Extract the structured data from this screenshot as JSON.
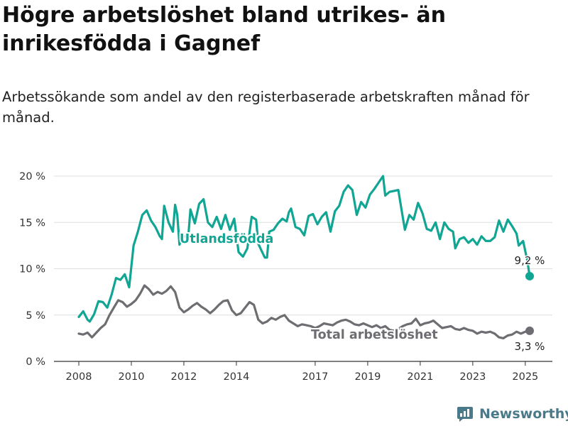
{
  "title": "Högre arbetslöshet bland utrikes- än inrikesfödda i Gagnef",
  "subtitle": "Arbetssökande som andel av den registerbaserade arbetskraften månad för månad.",
  "brand": "Newsworthy",
  "colors": {
    "utlandsfodda": "#11a594",
    "total": "#6e6e72",
    "grid": "#dedede",
    "axis": "#333333",
    "brand": "#4a7a8a"
  },
  "chart_data": {
    "type": "line",
    "ylim": [
      0,
      20
    ],
    "y_ticks": [
      0,
      5,
      10,
      15,
      20
    ],
    "y_tick_labels": [
      "0 %",
      "5 %",
      "10 %",
      "15 %",
      "20 %"
    ],
    "x_ticks": [
      "2008",
      "2010",
      "2012",
      "2014",
      "2017",
      "2019",
      "2021",
      "2023",
      "2025"
    ],
    "xlim": [
      "2008-01",
      "2025-03"
    ],
    "grid": true,
    "series": [
      {
        "name": "Utlandsfödda",
        "end_label": "9,2 %",
        "points": [
          [
            "2008-01",
            4.8
          ],
          [
            "2008-03",
            5.4
          ],
          [
            "2008-05",
            4.5
          ],
          [
            "2008-06",
            4.3
          ],
          [
            "2008-08",
            5.1
          ],
          [
            "2008-10",
            6.5
          ],
          [
            "2008-12",
            6.4
          ],
          [
            "2009-02",
            5.8
          ],
          [
            "2009-04",
            7.2
          ],
          [
            "2009-06",
            9.0
          ],
          [
            "2009-08",
            8.8
          ],
          [
            "2009-10",
            9.4
          ],
          [
            "2009-12",
            8.0
          ],
          [
            "2010-02",
            12.5
          ],
          [
            "2010-04",
            14.0
          ],
          [
            "2010-06",
            15.8
          ],
          [
            "2010-08",
            16.3
          ],
          [
            "2010-10",
            15.2
          ],
          [
            "2010-12",
            14.5
          ],
          [
            "2011-02",
            13.5
          ],
          [
            "2011-03",
            13.2
          ],
          [
            "2011-04",
            16.8
          ],
          [
            "2011-06",
            15.0
          ],
          [
            "2011-08",
            14.0
          ],
          [
            "2011-09",
            16.9
          ],
          [
            "2011-10",
            15.8
          ],
          [
            "2011-11",
            12.6
          ],
          [
            "2011-12",
            13.2
          ],
          [
            "2012-02",
            13.6
          ],
          [
            "2012-03",
            13.4
          ],
          [
            "2012-04",
            16.4
          ],
          [
            "2012-06",
            14.9
          ],
          [
            "2012-08",
            17.0
          ],
          [
            "2012-10",
            17.5
          ],
          [
            "2012-12",
            15.0
          ],
          [
            "2013-02",
            14.5
          ],
          [
            "2013-04",
            15.6
          ],
          [
            "2013-06",
            14.3
          ],
          [
            "2013-08",
            15.8
          ],
          [
            "2013-10",
            14.2
          ],
          [
            "2013-12",
            15.4
          ],
          [
            "2014-02",
            11.8
          ],
          [
            "2014-04",
            11.3
          ],
          [
            "2014-06",
            12.2
          ],
          [
            "2014-08",
            15.6
          ],
          [
            "2014-10",
            15.3
          ],
          [
            "2014-11",
            12.7
          ],
          [
            "2014-12",
            12.2
          ],
          [
            "2015-02",
            11.2
          ],
          [
            "2015-03",
            11.2
          ],
          [
            "2015-04",
            14.0
          ],
          [
            "2015-06",
            14.2
          ],
          [
            "2015-08",
            14.9
          ],
          [
            "2015-10",
            15.4
          ],
          [
            "2015-12",
            15.1
          ],
          [
            "2016-01",
            16.1
          ],
          [
            "2016-02",
            16.5
          ],
          [
            "2016-04",
            14.5
          ],
          [
            "2016-06",
            14.3
          ],
          [
            "2016-08",
            13.6
          ],
          [
            "2016-10",
            15.7
          ],
          [
            "2016-12",
            15.9
          ],
          [
            "2017-02",
            14.8
          ],
          [
            "2017-04",
            15.6
          ],
          [
            "2017-06",
            16.1
          ],
          [
            "2017-08",
            14.0
          ],
          [
            "2017-10",
            16.2
          ],
          [
            "2017-12",
            16.8
          ],
          [
            "2018-02",
            18.3
          ],
          [
            "2018-04",
            19.0
          ],
          [
            "2018-06",
            18.5
          ],
          [
            "2018-08",
            15.8
          ],
          [
            "2018-10",
            17.2
          ],
          [
            "2018-12",
            16.6
          ],
          [
            "2019-02",
            18.0
          ],
          [
            "2019-04",
            18.6
          ],
          [
            "2019-06",
            19.3
          ],
          [
            "2019-08",
            20.0
          ],
          [
            "2019-09",
            17.9
          ],
          [
            "2019-11",
            18.3
          ],
          [
            "2020-01",
            18.4
          ],
          [
            "2020-03",
            18.5
          ],
          [
            "2020-05",
            15.6
          ],
          [
            "2020-06",
            14.2
          ],
          [
            "2020-08",
            15.8
          ],
          [
            "2020-10",
            15.3
          ],
          [
            "2020-12",
            17.1
          ],
          [
            "2021-02",
            16.0
          ],
          [
            "2021-04",
            14.3
          ],
          [
            "2021-06",
            14.1
          ],
          [
            "2021-08",
            15.0
          ],
          [
            "2021-10",
            13.2
          ],
          [
            "2021-12",
            15.0
          ],
          [
            "2022-02",
            14.3
          ],
          [
            "2022-04",
            14.0
          ],
          [
            "2022-05",
            12.2
          ],
          [
            "2022-07",
            13.2
          ],
          [
            "2022-09",
            13.4
          ],
          [
            "2022-11",
            12.8
          ],
          [
            "2023-01",
            13.2
          ],
          [
            "2023-03",
            12.6
          ],
          [
            "2023-05",
            13.5
          ],
          [
            "2023-07",
            13.0
          ],
          [
            "2023-09",
            13.0
          ],
          [
            "2023-11",
            13.4
          ],
          [
            "2024-01",
            15.2
          ],
          [
            "2024-03",
            14.0
          ],
          [
            "2024-05",
            15.3
          ],
          [
            "2024-07",
            14.6
          ],
          [
            "2024-09",
            13.8
          ],
          [
            "2024-10",
            12.5
          ],
          [
            "2024-12",
            13.0
          ],
          [
            "2025-02",
            10.8
          ],
          [
            "2025-03",
            9.2
          ]
        ]
      },
      {
        "name": "Total arbetslöshet",
        "end_label": "3,3 %",
        "points": [
          [
            "2008-01",
            3.0
          ],
          [
            "2008-03",
            2.9
          ],
          [
            "2008-05",
            3.1
          ],
          [
            "2008-07",
            2.6
          ],
          [
            "2008-09",
            3.1
          ],
          [
            "2008-11",
            3.6
          ],
          [
            "2009-01",
            4.0
          ],
          [
            "2009-03",
            5.0
          ],
          [
            "2009-05",
            5.8
          ],
          [
            "2009-07",
            6.6
          ],
          [
            "2009-09",
            6.4
          ],
          [
            "2009-11",
            5.9
          ],
          [
            "2010-01",
            6.2
          ],
          [
            "2010-03",
            6.6
          ],
          [
            "2010-05",
            7.3
          ],
          [
            "2010-07",
            8.2
          ],
          [
            "2010-09",
            7.8
          ],
          [
            "2010-11",
            7.2
          ],
          [
            "2011-01",
            7.5
          ],
          [
            "2011-03",
            7.3
          ],
          [
            "2011-05",
            7.6
          ],
          [
            "2011-07",
            8.1
          ],
          [
            "2011-09",
            7.5
          ],
          [
            "2011-11",
            5.8
          ],
          [
            "2012-01",
            5.3
          ],
          [
            "2012-03",
            5.6
          ],
          [
            "2012-05",
            6.0
          ],
          [
            "2012-07",
            6.3
          ],
          [
            "2012-09",
            5.9
          ],
          [
            "2012-11",
            5.6
          ],
          [
            "2013-01",
            5.2
          ],
          [
            "2013-03",
            5.6
          ],
          [
            "2013-05",
            6.1
          ],
          [
            "2013-07",
            6.5
          ],
          [
            "2013-09",
            6.6
          ],
          [
            "2013-11",
            5.5
          ],
          [
            "2014-01",
            5.0
          ],
          [
            "2014-03",
            5.2
          ],
          [
            "2014-05",
            5.8
          ],
          [
            "2014-07",
            6.4
          ],
          [
            "2014-09",
            6.1
          ],
          [
            "2014-11",
            4.5
          ],
          [
            "2015-01",
            4.1
          ],
          [
            "2015-03",
            4.3
          ],
          [
            "2015-05",
            4.7
          ],
          [
            "2015-07",
            4.5
          ],
          [
            "2015-09",
            4.8
          ],
          [
            "2015-11",
            5.0
          ],
          [
            "2016-01",
            4.4
          ],
          [
            "2016-03",
            4.1
          ],
          [
            "2016-05",
            3.8
          ],
          [
            "2016-07",
            4.0
          ],
          [
            "2016-09",
            3.9
          ],
          [
            "2016-11",
            3.8
          ],
          [
            "2017-01",
            3.6
          ],
          [
            "2017-03",
            3.8
          ],
          [
            "2017-05",
            4.1
          ],
          [
            "2017-07",
            4.0
          ],
          [
            "2017-09",
            3.9
          ],
          [
            "2017-11",
            4.2
          ],
          [
            "2018-01",
            4.4
          ],
          [
            "2018-03",
            4.5
          ],
          [
            "2018-05",
            4.3
          ],
          [
            "2018-07",
            4.0
          ],
          [
            "2018-09",
            3.9
          ],
          [
            "2018-11",
            4.1
          ],
          [
            "2019-01",
            3.9
          ],
          [
            "2019-03",
            3.7
          ],
          [
            "2019-05",
            3.9
          ],
          [
            "2019-07",
            3.6
          ],
          [
            "2019-09",
            3.8
          ],
          [
            "2019-11",
            3.4
          ],
          [
            "2020-01",
            3.3
          ],
          [
            "2020-03",
            3.5
          ],
          [
            "2020-05",
            3.8
          ],
          [
            "2020-07",
            4.0
          ],
          [
            "2020-09",
            4.1
          ],
          [
            "2020-11",
            4.6
          ],
          [
            "2021-01",
            3.9
          ],
          [
            "2021-03",
            4.1
          ],
          [
            "2021-05",
            4.2
          ],
          [
            "2021-07",
            4.4
          ],
          [
            "2021-09",
            4.0
          ],
          [
            "2021-11",
            3.6
          ],
          [
            "2022-01",
            3.7
          ],
          [
            "2022-03",
            3.8
          ],
          [
            "2022-05",
            3.5
          ],
          [
            "2022-07",
            3.4
          ],
          [
            "2022-09",
            3.6
          ],
          [
            "2022-11",
            3.4
          ],
          [
            "2023-01",
            3.3
          ],
          [
            "2023-03",
            3.0
          ],
          [
            "2023-05",
            3.2
          ],
          [
            "2023-07",
            3.1
          ],
          [
            "2023-09",
            3.2
          ],
          [
            "2023-11",
            3.0
          ],
          [
            "2024-01",
            2.6
          ],
          [
            "2024-03",
            2.5
          ],
          [
            "2024-05",
            2.8
          ],
          [
            "2024-07",
            2.9
          ],
          [
            "2024-09",
            3.2
          ],
          [
            "2024-11",
            3.0
          ],
          [
            "2025-01",
            3.2
          ],
          [
            "2025-03",
            3.3
          ]
        ]
      }
    ]
  }
}
